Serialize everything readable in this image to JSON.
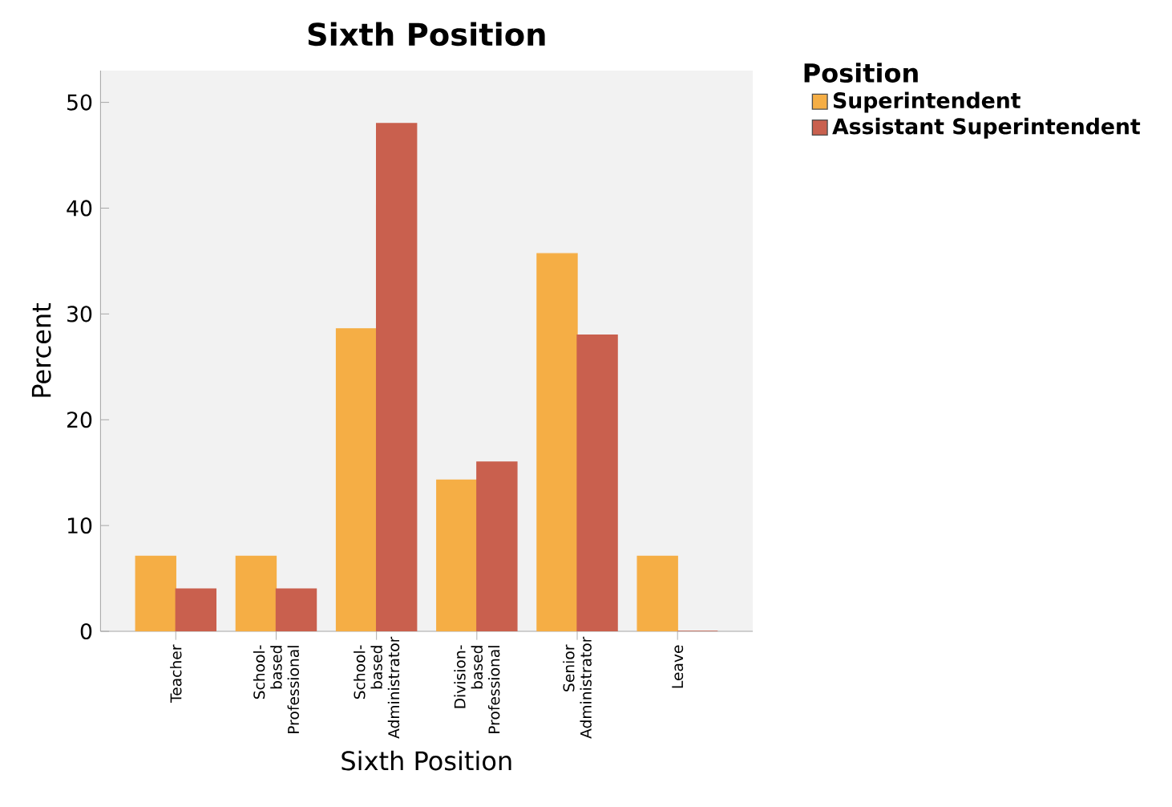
{
  "chart_data": {
    "type": "bar",
    "title": "Sixth Position",
    "xlabel": "Sixth Position",
    "ylabel": "Percent",
    "legend_title": "Position",
    "legend": "top right",
    "categories": [
      "Teacher",
      "School-based Professional",
      "School-based Administrator",
      "Division-based Professional",
      "Senior Administrator",
      "Leave"
    ],
    "series": [
      {
        "name": "Superintendent",
        "color": "#f5ae45",
        "values": [
          7.1,
          7.1,
          28.6,
          14.3,
          35.7,
          7.1
        ]
      },
      {
        "name": "Assistant Superintendent",
        "color": "#c9604e",
        "values": [
          4,
          4,
          48,
          16,
          28,
          0
        ]
      }
    ],
    "ylim": [
      0,
      53
    ],
    "yticks": [
      0,
      10,
      20,
      30,
      40,
      50
    ],
    "grid": false
  }
}
